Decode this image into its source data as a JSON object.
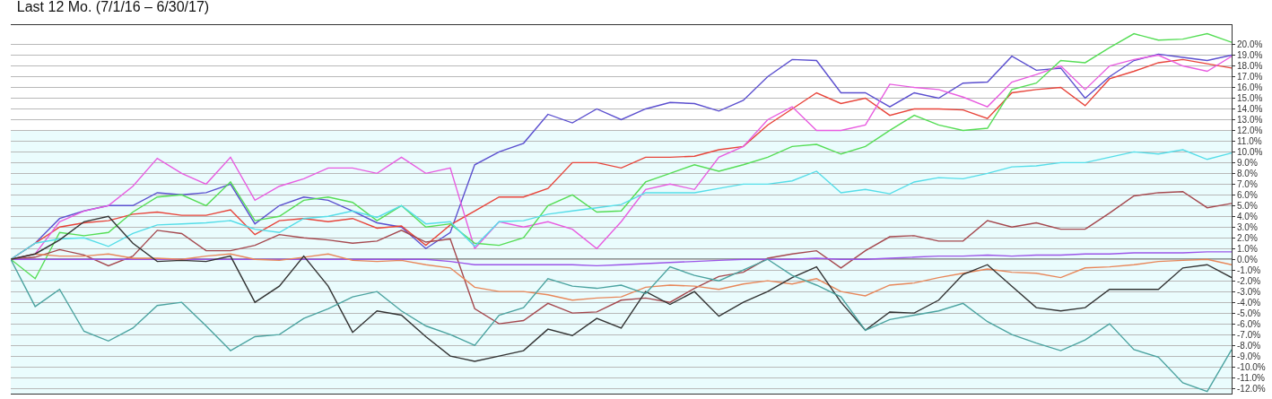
{
  "chart_data": {
    "type": "line",
    "title": "Last 12 Mo. (7/1/16 – 6/30/17)",
    "categories": [
      null,
      null,
      null,
      null,
      null,
      null,
      null,
      null,
      null,
      null,
      null,
      null,
      null,
      null,
      null,
      null,
      null,
      null,
      null,
      null,
      null,
      null,
      null,
      null,
      null,
      null,
      null,
      null,
      null,
      null,
      null,
      null,
      null,
      null,
      null,
      null,
      null,
      null,
      null,
      null,
      null,
      null,
      null,
      null,
      null,
      null,
      null,
      null,
      null,
      null,
      null
    ],
    "ylim": [
      -12.5,
      21.8
    ],
    "yticks": [
      {
        "value": -12,
        "label": "-12.0%"
      },
      {
        "value": -11,
        "label": "-11.0%"
      },
      {
        "value": -10,
        "label": "-10.0%"
      },
      {
        "value": -9,
        "label": "-9.0%"
      },
      {
        "value": -8,
        "label": "-8.0%"
      },
      {
        "value": -7,
        "label": "-7.0%"
      },
      {
        "value": -6,
        "label": "-6.0%"
      },
      {
        "value": -5,
        "label": "-5.0%"
      },
      {
        "value": -4,
        "label": "-4.0%"
      },
      {
        "value": -3,
        "label": "-3.0%"
      },
      {
        "value": -2,
        "label": "-2.0%"
      },
      {
        "value": -1,
        "label": "-1.0%"
      },
      {
        "value": 0,
        "label": "0.0%"
      },
      {
        "value": 1,
        "label": "1.0%"
      },
      {
        "value": 2,
        "label": "2.0%"
      },
      {
        "value": 3,
        "label": "3.0%"
      },
      {
        "value": 4,
        "label": "4.0%"
      },
      {
        "value": 5,
        "label": "5.0%"
      },
      {
        "value": 6,
        "label": "6.0%"
      },
      {
        "value": 7,
        "label": "7.0%"
      },
      {
        "value": 8,
        "label": "8.0%"
      },
      {
        "value": 9,
        "label": "9.0%"
      },
      {
        "value": 10,
        "label": "10.0%"
      },
      {
        "value": 11,
        "label": "11.0%"
      },
      {
        "value": 12,
        "label": "12.0%"
      },
      {
        "value": 13,
        "label": "13.0%"
      },
      {
        "value": 14,
        "label": "14.0%"
      },
      {
        "value": 15,
        "label": "15.0%"
      },
      {
        "value": 16,
        "label": "16.0%"
      },
      {
        "value": 17,
        "label": "17.0%"
      },
      {
        "value": 18,
        "label": "18.0%"
      },
      {
        "value": 19,
        "label": "19.0%"
      },
      {
        "value": 20,
        "label": "20.0%"
      }
    ],
    "grid": "y",
    "marker": "none",
    "line_style": "solid",
    "ref_lines": [
      {
        "axis": "y",
        "value": 0,
        "color": "#333333"
      }
    ],
    "bands": [
      {
        "axis": "y",
        "from": -12.5,
        "to": 12,
        "color": "#eafcfd"
      }
    ],
    "series": [
      {
        "color": "#5b4fcf",
        "values": [
          0,
          1.5,
          3.8,
          4.5,
          5.0,
          5.0,
          6.2,
          6.0,
          6.2,
          7.0,
          3.3,
          5.0,
          5.8,
          5.5,
          4.5,
          3.4,
          3.0,
          1.0,
          2.5,
          8.8,
          10,
          10.8,
          13.5,
          12.7,
          14,
          13,
          14,
          14.6,
          14.5,
          13.8,
          14.8,
          17,
          18.6,
          18.5,
          15.5,
          15.5,
          14.2,
          15.5,
          15,
          16.4,
          16.5,
          18.9,
          17.6,
          17.8,
          15,
          17,
          18.5,
          19.1,
          18.8,
          18.5,
          19
        ]
      },
      {
        "color": "#e8443a",
        "values": [
          0,
          1.5,
          3.0,
          3.4,
          3.6,
          4.2,
          4.4,
          4.1,
          4.1,
          4.6,
          2.3,
          3.6,
          3.8,
          3.5,
          3.8,
          2.9,
          3.1,
          1.3,
          3.2,
          4.5,
          5.8,
          5.8,
          6.6,
          9.0,
          9.0,
          8.5,
          9.5,
          9.5,
          9.6,
          10.2,
          10.5,
          12.5,
          14,
          15.5,
          14.5,
          15,
          13.4,
          14,
          14,
          13.9,
          13.1,
          15.5,
          15.8,
          16,
          14.3,
          16.8,
          17.5,
          18.3,
          18.6,
          18.2,
          17.8
        ]
      },
      {
        "color": "#e85ce0",
        "values": [
          0,
          0.5,
          3.5,
          4.5,
          5.0,
          6.8,
          9.4,
          8.0,
          7.0,
          9.5,
          5.5,
          6.8,
          7.5,
          8.5,
          8.5,
          8.0,
          9.5,
          8.0,
          8.5,
          1.0,
          3.5,
          3.0,
          3.5,
          2.8,
          1.0,
          3.5,
          6.5,
          7.0,
          6.5,
          9.5,
          10.5,
          13.0,
          14.2,
          12.0,
          12,
          12.5,
          16.3,
          16,
          15.8,
          15.1,
          14.2,
          16.5,
          17.2,
          18,
          15.8,
          18,
          18.6,
          19,
          18,
          17.5,
          18.9
        ]
      },
      {
        "color": "#55dd55",
        "values": [
          0,
          -1.8,
          2.5,
          2.2,
          2.5,
          4.4,
          5.8,
          6.0,
          5.0,
          7.2,
          3.6,
          4.0,
          5.5,
          5.8,
          5.3,
          3.6,
          5.0,
          3.0,
          3.3,
          1.5,
          1.3,
          2.0,
          5.0,
          6.0,
          4.4,
          4.5,
          7.2,
          8.0,
          8.8,
          8.2,
          8.8,
          9.5,
          10.5,
          10.7,
          9.8,
          10.5,
          12,
          13.4,
          12.5,
          12,
          12.2,
          15.8,
          16.4,
          18.5,
          18.3,
          19.7,
          21.0,
          20.4,
          20.5,
          21,
          20.2
        ]
      },
      {
        "color": "#55dde8",
        "values": [
          0,
          1.5,
          1.9,
          2.0,
          1.2,
          2.4,
          3.2,
          3.3,
          3.4,
          3.6,
          2.8,
          2.5,
          3.8,
          4.0,
          4.5,
          3.9,
          5.0,
          3.3,
          3.5,
          1.2,
          3.5,
          3.6,
          4.2,
          4.5,
          4.8,
          5.1,
          6.2,
          6.2,
          6.2,
          6.6,
          7.0,
          7.0,
          7.3,
          8.2,
          6.2,
          6.5,
          6.1,
          7.2,
          7.6,
          7.5,
          8.0,
          8.6,
          8.7,
          9.0,
          9.0,
          9.5,
          10,
          9.8,
          10.2,
          9.3,
          9.9
        ]
      },
      {
        "color": "#a5484e",
        "values": [
          0,
          0.2,
          0.9,
          0.4,
          -0.6,
          0.3,
          2.7,
          2.4,
          0.8,
          0.8,
          1.3,
          2.3,
          2.0,
          1.8,
          1.5,
          1.7,
          2.7,
          1.6,
          1.9,
          -4.6,
          -6.0,
          -5.7,
          -4.1,
          -5.0,
          -4.9,
          -3.8,
          -3.6,
          -4.0,
          -2.7,
          -1.6,
          -1.2,
          0.1,
          0.5,
          0.8,
          -0.8,
          0.8,
          2.1,
          2.2,
          1.7,
          1.7,
          3.6,
          3.0,
          3.4,
          2.8,
          2.8,
          4.3,
          5.9,
          6.2,
          6.3,
          4.8,
          5.2
        ]
      },
      {
        "color": "#9b55e8",
        "values": [
          0,
          0,
          0,
          0,
          0,
          0,
          0,
          0,
          0,
          0,
          0,
          0,
          0,
          0,
          0,
          0,
          0,
          0,
          -0.2,
          -0.5,
          -0.5,
          -0.5,
          -0.5,
          -0.5,
          -0.6,
          -0.5,
          -0.4,
          -0.3,
          -0.2,
          -0.1,
          0,
          0,
          0,
          0.1,
          0,
          0,
          0.1,
          0.2,
          0.3,
          0.3,
          0.4,
          0.3,
          0.4,
          0.4,
          0.5,
          0.5,
          0.6,
          0.6,
          0.6,
          0.7,
          0.7
        ]
      },
      {
        "color": "#e8875a",
        "values": [
          0,
          0.5,
          0.3,
          0.3,
          0.5,
          0.1,
          0.1,
          0.0,
          0.3,
          0.5,
          0.0,
          -0.1,
          0.2,
          0.5,
          -0.1,
          -0.2,
          -0.1,
          -0.5,
          -0.8,
          -2.6,
          -3.0,
          -3.0,
          -3.3,
          -3.8,
          -3.6,
          -3.5,
          -2.6,
          -2.4,
          -2.5,
          -2.8,
          -2.3,
          -2.0,
          -2.3,
          -1.8,
          -3.0,
          -3.4,
          -2.4,
          -2.2,
          -1.7,
          -1.3,
          -0.9,
          -1.2,
          -1.3,
          -1.7,
          -0.8,
          -0.7,
          -0.5,
          -0.2,
          -0.1,
          0.0,
          -0.5
        ]
      },
      {
        "color": "#333333",
        "values": [
          0,
          0.5,
          1.8,
          3.5,
          4.0,
          1.5,
          -0.2,
          -0.1,
          -0.2,
          0.3,
          -4.0,
          -2.5,
          0.3,
          -2.5,
          -6.8,
          -4.8,
          -5.2,
          -7.2,
          -9.0,
          -9.5,
          -9.0,
          -8.5,
          -6.5,
          -7.1,
          -5.5,
          -6.4,
          -3.0,
          -4.2,
          -3.0,
          -5.3,
          -4.0,
          -3.0,
          -1.7,
          -0.7,
          -4.0,
          -6.6,
          -4.9,
          -5.0,
          -3.8,
          -1.4,
          -0.5,
          -2.5,
          -4.5,
          -4.8,
          -4.5,
          -2.8,
          -2.8,
          -2.8,
          -0.8,
          -0.5,
          -1.7
        ]
      },
      {
        "color": "#4ba3a0",
        "values": [
          0,
          -4.4,
          -2.8,
          -6.7,
          -7.6,
          -6.4,
          -4.3,
          -4.0,
          -6.2,
          -8.5,
          -7.2,
          -7.0,
          -5.5,
          -4.6,
          -3.5,
          -3.0,
          -4.8,
          -6.2,
          -7.0,
          -8.0,
          -5.2,
          -4.5,
          -1.8,
          -2.5,
          -2.7,
          -2.4,
          -3.2,
          -0.7,
          -1.5,
          -2.0,
          -1.0,
          0.0,
          -1.5,
          -2.4,
          -3.5,
          -6.6,
          -5.6,
          -5.2,
          -4.8,
          -4.1,
          -5.8,
          -7.0,
          -7.8,
          -8.5,
          -7.5,
          -6.0,
          -8.4,
          -9.1,
          -11.5,
          -12.3,
          -8.4
        ]
      }
    ]
  }
}
